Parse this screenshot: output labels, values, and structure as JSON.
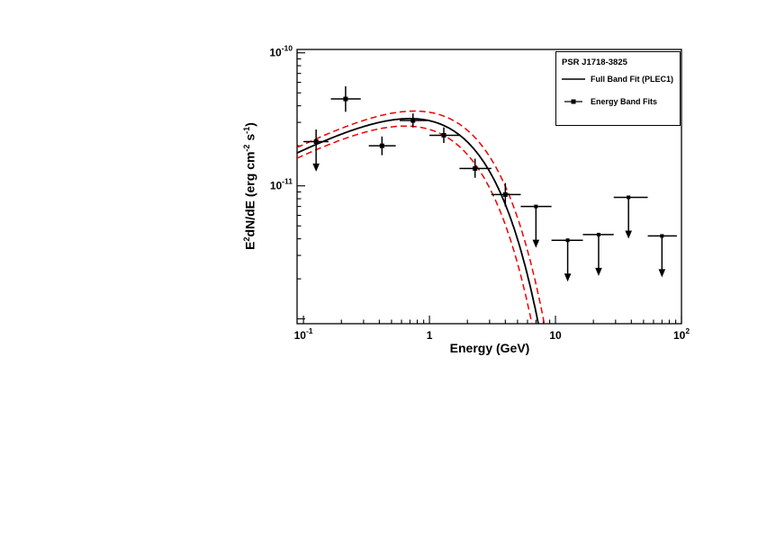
{
  "window": {
    "background": "#ffffff"
  },
  "legend": {
    "title": "PSR J1718-3825",
    "entries": [
      {
        "label": "Full Band Fit (PLEC1)",
        "sample": "line"
      },
      {
        "label": "Energy Band Fits",
        "sample": "square-marker"
      }
    ]
  },
  "axes": {
    "x_label": "Energy (GeV)",
    "y_label_full": "E^2 dN/dE (erg cm^-2 s^-1)",
    "y1": "E",
    "y1s": "2",
    "y2": "dN/dE (erg cm",
    "y2s": "-2",
    "y3": " s",
    "y3s": "-1",
    "y4": ")"
  },
  "colors": {
    "data": "#000000",
    "fit": "#000000",
    "uncertainty": "#ee0000"
  },
  "chart_data": {
    "type": "scatter",
    "title": "PSR J1718-3825",
    "xlabel": "Energy (GeV)",
    "ylabel": "E^2 dN/dE (erg cm^-2 s^-1)",
    "x_scale": "log",
    "y_scale": "log",
    "grid": false,
    "legend_position": "top-right",
    "xlim": [
      0.089,
      100
    ],
    "ylim": [
      9.2e-13,
      1.06e-10
    ],
    "x_ticks": [
      {
        "value": 0.1,
        "base": "10",
        "exp": "-1"
      },
      {
        "value": 1,
        "base": "1",
        "exp": ""
      },
      {
        "value": 10,
        "base": "10",
        "exp": ""
      },
      {
        "value": 100,
        "base": "10",
        "exp": "2"
      }
    ],
    "y_ticks": [
      {
        "value": 1e-10,
        "base": "10",
        "exp": "-10"
      },
      {
        "value": 1e-11,
        "base": "10",
        "exp": "-11"
      }
    ],
    "points": [
      {
        "E": 0.126,
        "Elo": 0.1,
        "Ehi": 0.158,
        "F": 2.15e-11,
        "Fmin": 1.8e-11,
        "Fmax": 2.65e-11,
        "lower_arrow": true
      },
      {
        "E": 0.216,
        "Elo": 0.165,
        "Ehi": 0.285,
        "F": 4.5e-11,
        "Fmin": 3.6e-11,
        "Fmax": 5.6e-11
      },
      {
        "E": 0.42,
        "Elo": 0.33,
        "Ehi": 0.54,
        "F": 2e-11,
        "Fmin": 1.7e-11,
        "Fmax": 2.35e-11
      },
      {
        "E": 0.74,
        "Elo": 0.58,
        "Ehi": 0.95,
        "F": 3.1e-11,
        "Fmin": 2.75e-11,
        "Fmax": 3.5e-11
      },
      {
        "E": 1.3,
        "Elo": 1.0,
        "Ehi": 1.73,
        "F": 2.4e-11,
        "Fmin": 2.1e-11,
        "Fmax": 2.75e-11
      },
      {
        "E": 2.3,
        "Elo": 1.73,
        "Ehi": 3.1,
        "F": 1.35e-11,
        "Fmin": 1.15e-11,
        "Fmax": 1.6e-11
      },
      {
        "E": 4.0,
        "Elo": 3.1,
        "Ehi": 5.3,
        "F": 8.6e-12,
        "Fmin": 7e-12,
        "Fmax": 1.05e-11
      }
    ],
    "upper_limits": [
      {
        "E": 7.0,
        "Elo": 5.3,
        "Ehi": 9.3,
        "F": 7e-12
      },
      {
        "E": 12.5,
        "Elo": 9.3,
        "Ehi": 16.5,
        "F": 3.9e-12
      },
      {
        "E": 22.0,
        "Elo": 16.5,
        "Ehi": 29.0,
        "F": 4.3e-12
      },
      {
        "E": 38.0,
        "Elo": 29.0,
        "Ehi": 54.0,
        "F": 8.2e-12
      },
      {
        "E": 70.0,
        "Elo": 54.0,
        "Ehi": 92.0,
        "F": 4.2e-12
      }
    ],
    "models": [
      {
        "name": "Full Band Fit (PLEC1)",
        "color": "#000000",
        "width": 1.8,
        "dash": "",
        "A": 6.31e-11,
        "slope": 0.5,
        "Ecut": 1.4
      },
      {
        "name": "Fit uncertainty upper",
        "color": "#ee0000",
        "width": 1.5,
        "dash": "7,4",
        "A": 6.9e-11,
        "slope": 0.5,
        "Ecut": 1.52
      },
      {
        "name": "Fit uncertainty lower",
        "color": "#ee0000",
        "width": 1.5,
        "dash": "7,4",
        "A": 5.8e-11,
        "slope": 0.5,
        "Ecut": 1.28
      }
    ]
  }
}
